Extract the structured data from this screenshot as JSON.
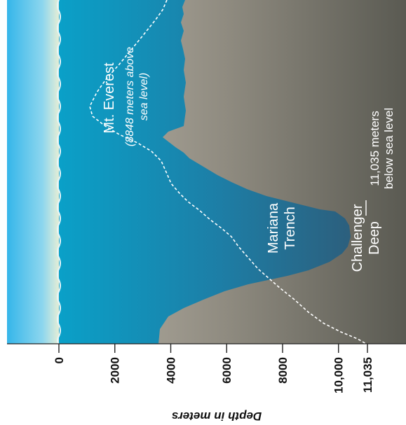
{
  "axis": {
    "title": "Depth in meters",
    "ticks": [
      {
        "depth": 0,
        "label": "0"
      },
      {
        "depth": 2000,
        "label": "2000"
      },
      {
        "depth": 4000,
        "label": "4000"
      },
      {
        "depth": 6000,
        "label": "6000"
      },
      {
        "depth": 8000,
        "label": "8000"
      },
      {
        "depth": 10000,
        "label": "10,000"
      },
      {
        "depth": 11035,
        "label": "11,035"
      }
    ]
  },
  "labels": {
    "everest_name": "Mt. Everest",
    "everest_note_1": "(8848 meters above",
    "everest_note_2": "sea level)",
    "trench_1": "Mariana",
    "trench_2": "Trench",
    "deep_1": "Challenger",
    "deep_2": "Deep",
    "depth_note_1": "11,035 meters",
    "depth_note_2": "below sea level"
  },
  "colors": {
    "sky_light": "#f3f1d2",
    "sky_blue": "#35b6ea",
    "ocean_top": "#0aa0c8",
    "ocean_bottom": "#2c5f7d",
    "seafloor_light": "#bfb8ad",
    "seafloor_dark": "#5a5a52"
  }
}
